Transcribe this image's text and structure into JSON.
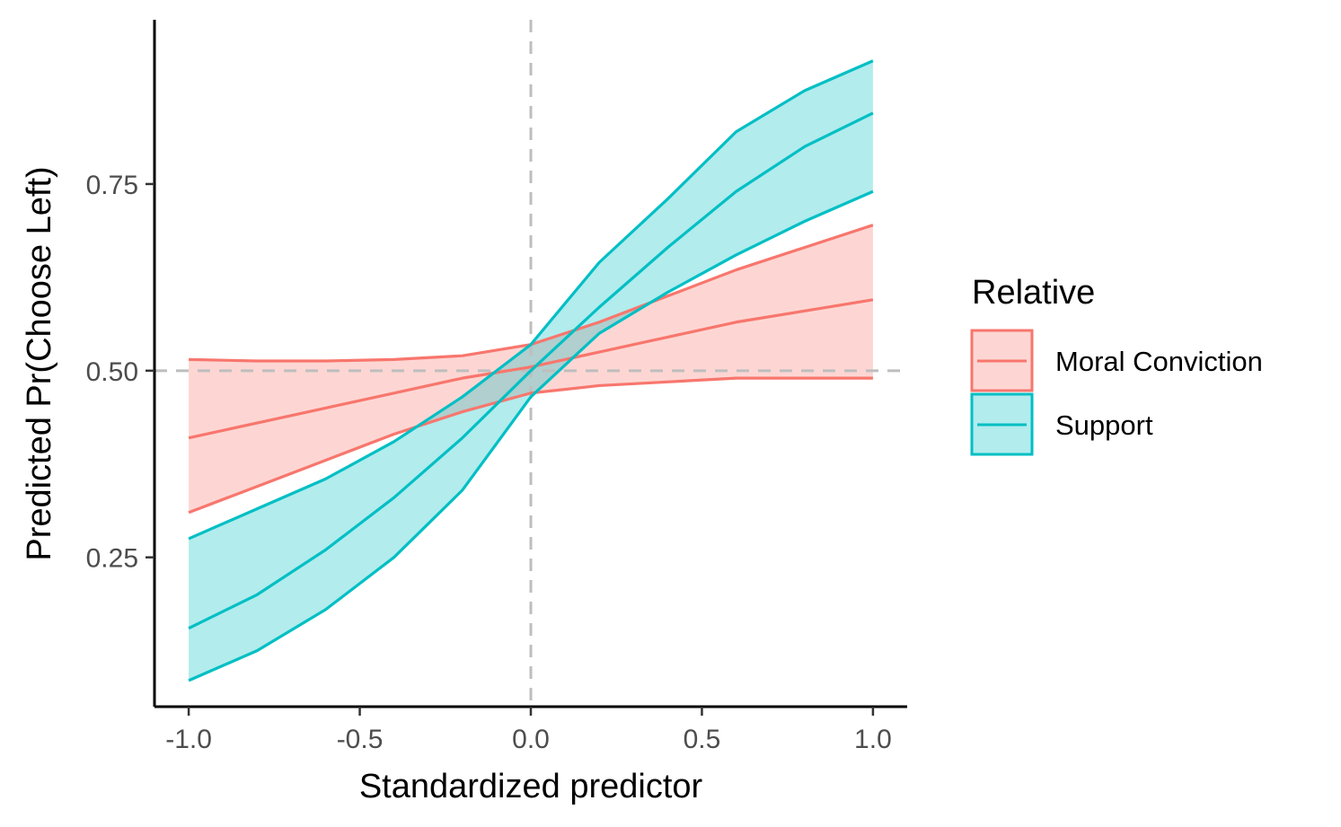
{
  "chart_data": {
    "type": "line",
    "title": "",
    "xlabel": "Standardized predictor",
    "ylabel": "Predicted Pr(Choose Left)",
    "xlim": [
      -1.1,
      1.1
    ],
    "ylim": [
      0.05,
      0.97
    ],
    "x_ticks": [
      -1.0,
      -0.5,
      0.0,
      0.5,
      1.0
    ],
    "x_tick_labels": [
      "-1.0",
      "-0.5",
      "0.0",
      "0.5",
      "1.0"
    ],
    "y_ticks": [
      0.25,
      0.5,
      0.75
    ],
    "y_tick_labels": [
      "0.25",
      "0.50",
      "0.75"
    ],
    "grid": false,
    "reference_lines": {
      "vertical_x": 0.0,
      "horizontal_y": 0.5,
      "style": "dashed",
      "color": "#bebebe"
    },
    "legend": {
      "title": "Relative",
      "placement": "right"
    },
    "series": [
      {
        "name": "Moral Conviction",
        "color": "#F8766D",
        "fill": "#F8766D",
        "x": [
          -1.0,
          -0.8,
          -0.6,
          -0.4,
          -0.2,
          0.0,
          0.2,
          0.4,
          0.6,
          0.8,
          1.0
        ],
        "y": [
          0.41,
          0.43,
          0.45,
          0.47,
          0.49,
          0.505,
          0.525,
          0.545,
          0.565,
          0.58,
          0.595
        ],
        "lower": [
          0.31,
          0.345,
          0.38,
          0.415,
          0.445,
          0.47,
          0.48,
          0.485,
          0.49,
          0.49,
          0.49
        ],
        "upper": [
          0.515,
          0.513,
          0.513,
          0.515,
          0.52,
          0.535,
          0.565,
          0.6,
          0.635,
          0.665,
          0.695
        ]
      },
      {
        "name": "Support",
        "color": "#00BFC4",
        "fill": "#00BFC4",
        "x": [
          -1.0,
          -0.8,
          -0.6,
          -0.4,
          -0.2,
          0.0,
          0.2,
          0.4,
          0.6,
          0.8,
          1.0
        ],
        "y": [
          0.155,
          0.2,
          0.26,
          0.33,
          0.41,
          0.5,
          0.585,
          0.665,
          0.74,
          0.8,
          0.845
        ],
        "lower": [
          0.085,
          0.125,
          0.18,
          0.25,
          0.34,
          0.465,
          0.55,
          0.605,
          0.655,
          0.7,
          0.74
        ],
        "upper": [
          0.275,
          0.315,
          0.355,
          0.405,
          0.465,
          0.535,
          0.645,
          0.73,
          0.82,
          0.875,
          0.915
        ]
      }
    ]
  }
}
